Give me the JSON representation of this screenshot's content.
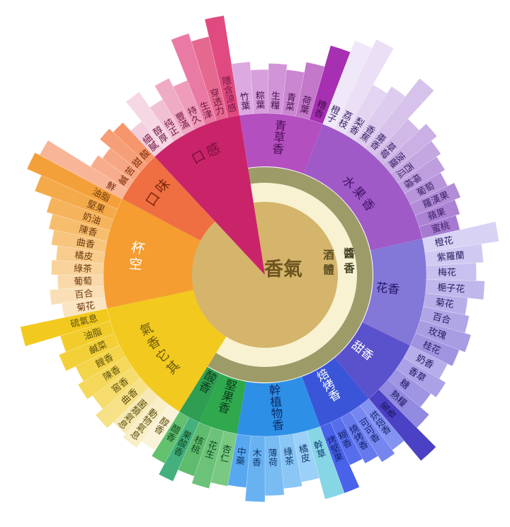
{
  "chart_data": {
    "type": "sunburst",
    "title": "",
    "background": "#ffffff",
    "center": {
      "label": "香氣",
      "color": "#d4b56b",
      "text_color": "#6f5520"
    },
    "rings": [
      {
        "label": "酒體",
        "color": "#f8f2d2",
        "text_color": "#5c4d22"
      },
      {
        "label": "醬香",
        "color": "#9d9b68",
        "text_color": "#454223"
      }
    ],
    "families": [
      {
        "name": "口感",
        "kind": "wedge",
        "over_center": true,
        "start": 317,
        "end": 351,
        "color": "#c9246a",
        "label_color": "#7a0f3c",
        "label_mode": "arc",
        "label_r": 190,
        "label_fs": 19,
        "text_color": "#701540",
        "petals": [
          {
            "label": "細膩",
            "len": 0.34,
            "color": "#f3cedd"
          },
          {
            "label": "醇厚",
            "len": 0.58,
            "color": "#f5d8e3"
          },
          {
            "label": "纯正",
            "len": 0.4,
            "color": "#f2c0d3"
          },
          {
            "label": "豐滿",
            "len": 0.55,
            "color": "#f0abc4"
          },
          {
            "label": "持久",
            "len": 0.46,
            "color": "#ee9cba"
          },
          {
            "label": "生津",
            "len": 0.88,
            "color": "#e97aa4"
          },
          {
            "label": "穿透力",
            "len": 0.8,
            "color": "#e5688f"
          },
          {
            "label": "隱含涼感",
            "len": 0.97,
            "color": "#e04a80"
          }
        ]
      },
      {
        "name": "青草香",
        "kind": "band",
        "start": 351,
        "end": 381,
        "color": "#b44fc0",
        "label_color": "#4d0e57",
        "label_mode": "radial",
        "text_color": "#45104d",
        "petals": [
          {
            "label": "竹葉",
            "len": 0.5,
            "color": "#dcaae0"
          },
          {
            "label": "粽葉",
            "len": 0.42,
            "color": "#d7a0dc"
          },
          {
            "label": "生糧",
            "len": 0.48,
            "color": "#d194d7"
          },
          {
            "label": "青菜",
            "len": 0.43,
            "color": "#ca86d1"
          },
          {
            "label": "荷葉",
            "len": 0.53,
            "color": "#c378ca"
          },
          {
            "label": "糟香",
            "len": 0.74,
            "color": "#a62fb2"
          }
        ]
      },
      {
        "name": "水果香",
        "kind": "band",
        "start": 21,
        "end": 77,
        "color": "#a05ac8",
        "label_color": "#3f1166",
        "label_mode": "arc",
        "label_r": 176,
        "label_fs": 17,
        "text_color": "#3c2268",
        "petals": [
          {
            "label": "橙子",
            "len": 0.86,
            "color": "#efe8f8"
          },
          {
            "label": "荔枝",
            "len": 0.95,
            "color": "#eadff5"
          },
          {
            "label": "梨香",
            "len": 0.55,
            "color": "#e3d5f1"
          },
          {
            "label": "香蕉",
            "len": 0.63,
            "color": "#ddccee"
          },
          {
            "label": "棗香",
            "len": 0.85,
            "color": "#d6c2ea"
          },
          {
            "label": "草莓",
            "len": 0.48,
            "color": "#d0b9e7"
          },
          {
            "label": "菠蘿",
            "len": 0.57,
            "color": "#cab0e4"
          },
          {
            "label": "西瓜",
            "len": 0.5,
            "color": "#c4a7e1"
          },
          {
            "label": "檸檬",
            "len": 0.45,
            "color": "#be9ede"
          },
          {
            "label": "葡萄",
            "len": 0.4,
            "color": "#b895da"
          },
          {
            "label": "羅漢果",
            "len": 0.47,
            "color": "#b28cd7"
          },
          {
            "label": "蘋果",
            "len": 0.41,
            "color": "#ac83d4"
          },
          {
            "label": "蜜桃",
            "len": 0.37,
            "color": "#a67ad1"
          }
        ]
      },
      {
        "name": "花香",
        "kind": "band",
        "start": 77,
        "end": 116,
        "color": "#8377d8",
        "label_color": "#241566",
        "label_mode": "radial",
        "text_color": "#2a1c62",
        "petals": [
          {
            "label": "橙花",
            "len": 0.72,
            "color": "#d8d3f5"
          },
          {
            "label": "紫羅蘭",
            "len": 0.55,
            "color": "#d0caf2"
          },
          {
            "label": "梅花",
            "len": 0.48,
            "color": "#c8c1ef"
          },
          {
            "label": "梔子花",
            "len": 0.56,
            "color": "#c0b8ec"
          },
          {
            "label": "菊花",
            "len": 0.41,
            "color": "#b8afe9"
          },
          {
            "label": "百合",
            "len": 0.45,
            "color": "#b0a6e6"
          },
          {
            "label": "玫瑰",
            "len": 0.51,
            "color": "#a89de3"
          },
          {
            "label": "桂花",
            "len": 0.45,
            "color": "#a094e0"
          }
        ]
      },
      {
        "name": "甜香",
        "kind": "band",
        "start": 116,
        "end": 140,
        "color": "#5a51cc",
        "label_color": "#ffffff",
        "label_mode": "radial",
        "text_color": "#1c1660",
        "petals": [
          {
            "label": "奶香",
            "len": 0.4,
            "color": "#b6aeea"
          },
          {
            "label": "香草",
            "len": 0.47,
            "color": "#aaa1e7"
          },
          {
            "label": "糖",
            "len": 0.41,
            "color": "#9e95e3"
          },
          {
            "label": "熟糧",
            "len": 0.52,
            "color": "#9289e0"
          },
          {
            "label": "蜜香",
            "len": 0.78,
            "color": "#4a41c4"
          }
        ]
      },
      {
        "name": "焙烤香",
        "kind": "band",
        "start": 140,
        "end": 160,
        "color": "#3a55d8",
        "label_color": "#ffffff",
        "label_mode": "radial",
        "text_color": "#14246e",
        "petals": [
          {
            "label": "烘焙香",
            "len": 0.53,
            "color": "#8492f2"
          },
          {
            "label": "可可香",
            "len": 0.57,
            "color": "#7586f0"
          },
          {
            "label": "燒烤香",
            "len": 0.5,
            "color": "#667aee"
          },
          {
            "label": "糊香",
            "len": 0.45,
            "color": "#576eec"
          },
          {
            "label": "烤堅果",
            "len": 0.68,
            "color": "#4862ea"
          }
        ]
      },
      {
        "name": "幹植物香",
        "kind": "band",
        "start": 160,
        "end": 190,
        "color": "#2e8fe6",
        "label_color": "#0d2a66",
        "label_mode": "radial",
        "text_color": "#103a70",
        "petals": [
          {
            "label": "幹草",
            "len": 0.68,
            "color": "#86d6e6"
          },
          {
            "label": "橘皮",
            "len": 0.47,
            "color": "#9bd0f8"
          },
          {
            "label": "綠茶",
            "len": 0.51,
            "color": "#8ac6f6"
          },
          {
            "label": "薄荷",
            "len": 0.57,
            "color": "#79bcf4"
          },
          {
            "label": "木香",
            "len": 0.63,
            "color": "#68b2f2"
          },
          {
            "label": "中藥",
            "len": 0.5,
            "color": "#57a8f0"
          }
        ]
      },
      {
        "name": "堅果香",
        "kind": "band",
        "start": 190,
        "end": 204,
        "color": "#2fa84e",
        "label_color": "#0b3d1b",
        "label_mode": "radial",
        "text_color": "#114a20",
        "petals": [
          {
            "label": "杏仁",
            "len": 0.51,
            "color": "#79c983"
          },
          {
            "label": "花生",
            "len": 0.57,
            "color": "#6cc278"
          },
          {
            "label": "核桃",
            "len": 0.5,
            "color": "#5fbb6d"
          }
        ]
      },
      {
        "name": "酸香",
        "kind": "band",
        "start": 204,
        "end": 212,
        "color": "#2f9e52",
        "label_color": "#0b3d1b",
        "label_mode": "radial",
        "text_color": "#114a20",
        "petals": [
          {
            "label": "果酸香",
            "len": 0.62,
            "color": "#43b07e"
          },
          {
            "label": "醋香",
            "len": 0.5,
            "color": "#62c06e"
          }
        ]
      },
      {
        "name": "其它香氣",
        "kind": "wedge",
        "start": 212,
        "end": 258,
        "color": "#f2c91e",
        "label_color": "#6d5a0e",
        "label_mode": "arc",
        "label_r": 184,
        "label_fs": 18,
        "text_color": "#5f520e",
        "petals": [
          {
            "label": "醇香",
            "len": 0.44,
            "color": "#faf3da"
          },
          {
            "label": "動物氣息",
            "len": 0.52,
            "color": "#f8eec8"
          },
          {
            "label": "菌類氣息",
            "len": 0.48,
            "color": "#f6e9b5"
          },
          {
            "label": "曲香",
            "len": 0.56,
            "color": "#f6e187"
          },
          {
            "label": "窖香",
            "len": 0.47,
            "color": "#f5dc6d"
          },
          {
            "label": "陳香",
            "len": 0.53,
            "color": "#f5d85a"
          },
          {
            "label": "餿香",
            "len": 0.47,
            "color": "#f4d449"
          },
          {
            "label": "鹹菜",
            "len": 0.57,
            "color": "#f3d038"
          },
          {
            "label": "油脂",
            "len": 0.5,
            "color": "#f2cc2a"
          },
          {
            "label": "硫氣息",
            "len": 0.85,
            "color": "#f2c91e"
          }
        ]
      },
      {
        "name": "空杯",
        "kind": "wedge",
        "start": 258,
        "end": 298,
        "color": "#f59d31",
        "label_color": "#ffffff",
        "label_mode": "arc",
        "label_r": 183,
        "label_fs": 19,
        "text_color": "#6e3a10",
        "petals": [
          {
            "label": "菊花",
            "len": 0.42,
            "color": "#fbe4c1"
          },
          {
            "label": "百合",
            "len": 0.52,
            "color": "#fadfb6"
          },
          {
            "label": "葡萄",
            "len": 0.44,
            "color": "#f9d9a9"
          },
          {
            "label": "綠茶",
            "len": 0.5,
            "color": "#f9d39b"
          },
          {
            "label": "橘皮",
            "len": 0.46,
            "color": "#f8cc8c"
          },
          {
            "label": "曲香",
            "len": 0.52,
            "color": "#f7c57d"
          },
          {
            "label": "陳香",
            "len": 0.57,
            "color": "#f6bd6d"
          },
          {
            "label": "奶油",
            "len": 0.63,
            "color": "#f5b35c"
          },
          {
            "label": "堅果",
            "len": 0.8,
            "color": "#f4aa4b"
          },
          {
            "label": "油脂",
            "len": 0.95,
            "color": "#f4a03a"
          }
        ]
      },
      {
        "name": "口味",
        "kind": "wedge",
        "start": 298,
        "end": 317,
        "color": "#ef6f42",
        "label_color": "#7c2606",
        "label_mode": "arc",
        "label_r": 190,
        "label_fs": 19,
        "text_color": "#7c2d08",
        "petals": [
          {
            "label": "鮮",
            "len": 0.9,
            "color": "#f8b598"
          },
          {
            "label": "鹹",
            "len": 0.42,
            "color": "#f7ad8d"
          },
          {
            "label": "苦",
            "len": 0.37,
            "color": "#f7a683"
          },
          {
            "label": "甜",
            "len": 0.5,
            "color": "#f69e78"
          },
          {
            "label": "酸",
            "len": 0.45,
            "color": "#f5966d"
          }
        ]
      }
    ]
  }
}
